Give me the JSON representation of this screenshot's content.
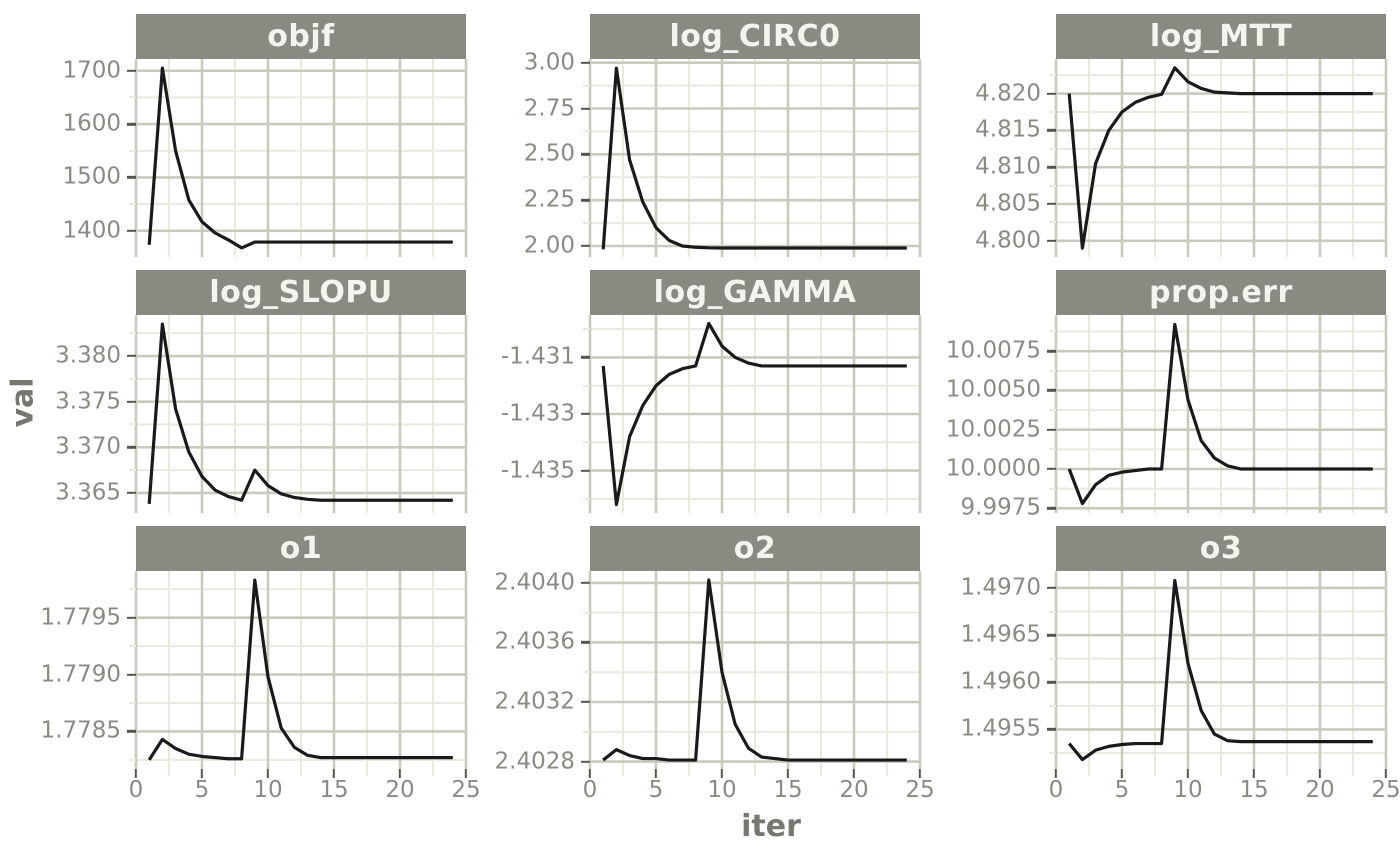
{
  "colors": {
    "strip_bg": "#8a8a83",
    "strip_text": "#f4f4ee",
    "grid_major": "#c9c9bc",
    "grid_minor": "#e9e9de",
    "line": "#1a1a1a",
    "tick_text": "#8b8b84",
    "axis_title": "#77776f",
    "tick_mark": "#55554f",
    "panel_bg": "#ffffff",
    "background": "#ffffff"
  },
  "chart_data": {
    "type": "line",
    "title": "",
    "ylabel": "val",
    "shared_x": {
      "label": "iter",
      "ticks": [
        0,
        5,
        10,
        15,
        20,
        25
      ],
      "tick_labels": [
        "0",
        "5",
        "10",
        "15",
        "20",
        "25"
      ],
      "lim": [
        0,
        25
      ]
    },
    "x": [
      1,
      2,
      3,
      4,
      5,
      6,
      7,
      8,
      9,
      10,
      11,
      12,
      13,
      14,
      15,
      16,
      17,
      18,
      19,
      20,
      21,
      22,
      23,
      24
    ],
    "facets": [
      {
        "title": "objf",
        "ylim": [
          1351,
          1722
        ],
        "yticks": [
          1400,
          1500,
          1600,
          1700
        ],
        "ytick_labels": [
          "1400",
          "1500",
          "1600",
          "1700"
        ],
        "values": [
          1374,
          1705,
          1550,
          1458,
          1417,
          1396,
          1383,
          1368,
          1379,
          1379,
          1379,
          1379,
          1379,
          1379,
          1379,
          1379,
          1379,
          1379,
          1379,
          1379,
          1379,
          1379,
          1379,
          1379
        ]
      },
      {
        "title": "log_CIRC0",
        "ylim": [
          1.94,
          3.02
        ],
        "yticks": [
          2.0,
          2.25,
          2.5,
          2.75,
          3.0
        ],
        "ytick_labels": [
          "2.00",
          "2.25",
          "2.50",
          "2.75",
          "3.00"
        ],
        "values": [
          1.982,
          2.97,
          2.47,
          2.24,
          2.1,
          2.03,
          2.0,
          1.993,
          1.99,
          1.989,
          1.989,
          1.989,
          1.989,
          1.989,
          1.989,
          1.989,
          1.989,
          1.989,
          1.989,
          1.989,
          1.989,
          1.989,
          1.989,
          1.989
        ]
      },
      {
        "title": "log_MTT",
        "ylim": [
          4.7978,
          4.8247
        ],
        "yticks": [
          4.8,
          4.805,
          4.81,
          4.815,
          4.82
        ],
        "ytick_labels": [
          "4.800",
          "4.805",
          "4.810",
          "4.815",
          "4.820"
        ],
        "values": [
          4.82,
          4.799,
          4.8105,
          4.815,
          4.8175,
          4.8188,
          4.8195,
          4.8199,
          4.8235,
          4.8216,
          4.8207,
          4.8202,
          4.8201,
          4.82,
          4.82,
          4.82,
          4.82,
          4.82,
          4.82,
          4.82,
          4.82,
          4.82,
          4.82,
          4.82
        ]
      },
      {
        "title": "log_SLOPU",
        "ylim": [
          3.3628,
          3.3845
        ],
        "yticks": [
          3.365,
          3.37,
          3.375,
          3.38
        ],
        "ytick_labels": [
          "3.365",
          "3.370",
          "3.375",
          "3.380"
        ],
        "values": [
          3.3638,
          3.3835,
          3.3742,
          3.3695,
          3.3668,
          3.3653,
          3.3646,
          3.3642,
          3.3675,
          3.3658,
          3.3649,
          3.3645,
          3.3643,
          3.3642,
          3.3642,
          3.3642,
          3.3642,
          3.3642,
          3.3642,
          3.3642,
          3.3642,
          3.3642,
          3.3642,
          3.3642
        ]
      },
      {
        "title": "log_GAMMA",
        "ylim": [
          -1.4365,
          -1.4295
        ],
        "yticks": [
          -1.435,
          -1.433,
          -1.431
        ],
        "ytick_labels": [
          "-1.435",
          "-1.433",
          "-1.431"
        ],
        "values": [
          -1.4313,
          -1.4362,
          -1.4338,
          -1.4327,
          -1.432,
          -1.4316,
          -1.4314,
          -1.4313,
          -1.4298,
          -1.4306,
          -1.431,
          -1.4312,
          -1.4313,
          -1.4313,
          -1.4313,
          -1.4313,
          -1.4313,
          -1.4313,
          -1.4313,
          -1.4313,
          -1.4313,
          -1.4313,
          -1.4313,
          -1.4313
        ]
      },
      {
        "title": "prop.err",
        "ylim": [
          9.9972,
          10.0098
        ],
        "yticks": [
          9.9975,
          10.0,
          10.0025,
          10.005,
          10.0075
        ],
        "ytick_labels": [
          "9.9975",
          "10.0000",
          "10.0025",
          "10.0050",
          "10.0075"
        ],
        "values": [
          10.0,
          9.9978,
          9.999,
          9.9996,
          9.9998,
          9.9999,
          10.0,
          10.0,
          10.0092,
          10.0044,
          10.0018,
          10.0007,
          10.0002,
          10.0,
          10.0,
          10.0,
          10.0,
          10.0,
          10.0,
          10.0,
          10.0,
          10.0,
          10.0,
          10.0
        ]
      },
      {
        "title": "o1",
        "ylim": [
          1.77817,
          1.77991
        ],
        "yticks": [
          1.7785,
          1.779,
          1.7795
        ],
        "ytick_labels": [
          "1.7785",
          "1.7790",
          "1.7795"
        ],
        "values": [
          1.77825,
          1.77843,
          1.77835,
          1.7783,
          1.77828,
          1.77827,
          1.77826,
          1.77826,
          1.77983,
          1.77898,
          1.77853,
          1.77836,
          1.77829,
          1.77827,
          1.77827,
          1.77827,
          1.77827,
          1.77827,
          1.77827,
          1.77827,
          1.77827,
          1.77827,
          1.77827,
          1.77827
        ]
      },
      {
        "title": "o2",
        "ylim": [
          2.40275,
          2.40408
        ],
        "yticks": [
          2.4028,
          2.4032,
          2.4036,
          2.404
        ],
        "ytick_labels": [
          "2.4028",
          "2.4032",
          "2.4036",
          "2.4040"
        ],
        "values": [
          2.40281,
          2.40288,
          2.40284,
          2.40282,
          2.40282,
          2.40281,
          2.40281,
          2.40281,
          2.40402,
          2.4034,
          2.40305,
          2.40289,
          2.40283,
          2.40282,
          2.40281,
          2.40281,
          2.40281,
          2.40281,
          2.40281,
          2.40281,
          2.40281,
          2.40281,
          2.40281,
          2.40281
        ]
      },
      {
        "title": "o3",
        "ylim": [
          1.49508,
          1.49718
        ],
        "yticks": [
          1.4955,
          1.496,
          1.4965,
          1.497
        ],
        "ytick_labels": [
          "1.4955",
          "1.4960",
          "1.4965",
          "1.4970"
        ],
        "values": [
          1.49535,
          1.49518,
          1.49528,
          1.49532,
          1.49534,
          1.49535,
          1.49535,
          1.49535,
          1.49708,
          1.4962,
          1.4957,
          1.49545,
          1.49538,
          1.49537,
          1.49537,
          1.49537,
          1.49537,
          1.49537,
          1.49537,
          1.49537,
          1.49537,
          1.49537,
          1.49537,
          1.49537
        ]
      }
    ]
  }
}
